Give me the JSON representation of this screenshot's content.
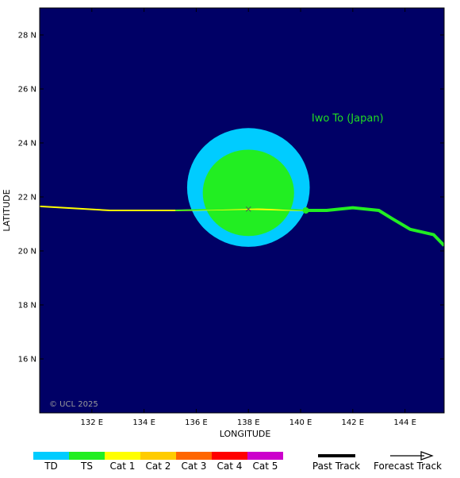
{
  "map": {
    "colors": {
      "ocean": "#000066",
      "frame": "#000000",
      "wind_outer": "#00ccff",
      "wind_inner": "#22ee22",
      "past_track": "#ffff00",
      "track_ts": "#22ee22"
    },
    "axes": {
      "x_title": "LONGITUDE",
      "y_title": "LATITUDE",
      "lon_range": [
        130.0,
        145.5
      ],
      "lat_range": [
        14.0,
        29.0
      ],
      "lon_ticks": [
        {
          "value": 132,
          "label": "132 E"
        },
        {
          "value": 134,
          "label": "134 E"
        },
        {
          "value": 136,
          "label": "136 E"
        },
        {
          "value": 138,
          "label": "138 E"
        },
        {
          "value": 140,
          "label": "140 E"
        },
        {
          "value": 142,
          "label": "142 E"
        },
        {
          "value": 144,
          "label": "144 E"
        }
      ],
      "lat_ticks": [
        {
          "value": 16,
          "label": "16 N"
        },
        {
          "value": 18,
          "label": "18 N"
        },
        {
          "value": 20,
          "label": "20 N"
        },
        {
          "value": 22,
          "label": "22 N"
        },
        {
          "value": 24,
          "label": "24 N"
        },
        {
          "value": 26,
          "label": "26 N"
        },
        {
          "value": 28,
          "label": "28 N"
        }
      ]
    },
    "place_label": {
      "text": "Iwo To (Japan)",
      "lon": 141.8,
      "lat": 24.8
    },
    "copyright": "© UCL 2025",
    "storm_center": {
      "lon": 138.0,
      "lat": 21.55
    },
    "wind_radii": {
      "outer": {
        "lon": 138.0,
        "lat": 22.35,
        "r_lon": 2.35,
        "r_lat": 2.2
      },
      "inner": {
        "lon": 138.0,
        "lat": 22.15,
        "r_lon": 1.75,
        "r_lat": 1.6
      }
    },
    "past_track": [
      [
        130.0,
        21.65
      ],
      [
        132.7,
        21.5
      ],
      [
        135.2,
        21.5
      ],
      [
        138.0,
        21.55
      ],
      [
        140.2,
        21.5
      ]
    ],
    "forecast_track": [
      [
        135.2,
        21.5
      ],
      [
        137.0,
        21.55
      ],
      [
        138.5,
        21.6
      ],
      [
        140.2,
        21.5
      ]
    ],
    "future_track": [
      [
        140.2,
        21.5
      ],
      [
        141.0,
        21.5
      ],
      [
        142.0,
        21.6
      ],
      [
        143.0,
        21.5
      ],
      [
        143.5,
        21.2
      ],
      [
        144.2,
        20.8
      ],
      [
        145.1,
        20.6
      ],
      [
        145.5,
        20.2
      ]
    ],
    "current_position": {
      "lon": 140.2,
      "lat": 21.5
    }
  },
  "legend": {
    "categories": [
      {
        "label": "TD",
        "color": "#00ccff"
      },
      {
        "label": "TS",
        "color": "#22ee22"
      },
      {
        "label": "Cat 1",
        "color": "#ffff00"
      },
      {
        "label": "Cat 2",
        "color": "#ffcc00"
      },
      {
        "label": "Cat 3",
        "color": "#ff6600"
      },
      {
        "label": "Cat 4",
        "color": "#ff0000"
      },
      {
        "label": "Cat 5",
        "color": "#cc00cc"
      }
    ],
    "past_track_label": "Past Track",
    "forecast_track_label": "Forecast Track"
  }
}
